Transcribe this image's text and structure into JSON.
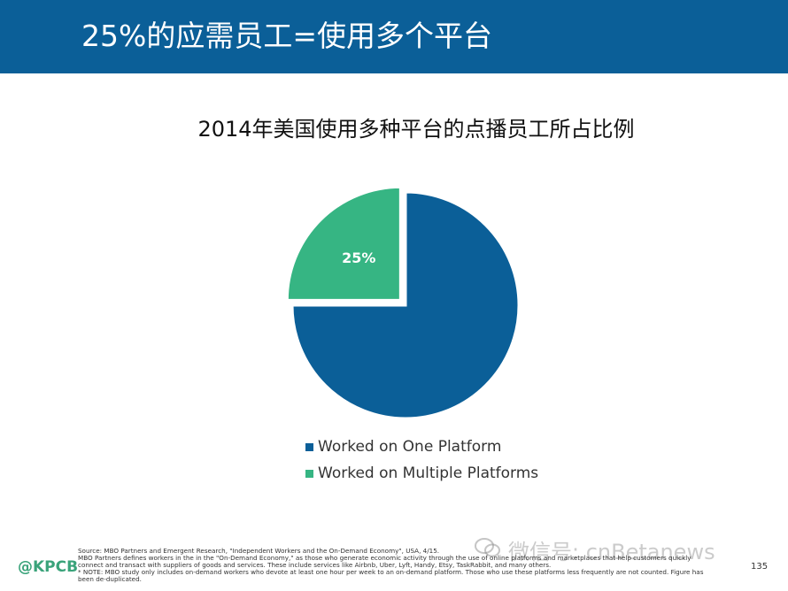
{
  "header": {
    "title": "25%的应需员工=使用多个平台"
  },
  "chart_data": {
    "type": "pie",
    "title": "2014年美国使用多种平台的点播员工所占比例",
    "labels": [
      "Worked on One Platform",
      "Worked on Multiple Platforms"
    ],
    "values": [
      75,
      25
    ],
    "colors": [
      "#0b5f98",
      "#36b583"
    ],
    "data_labels": [
      "",
      "25%"
    ],
    "legend_position": "bottom"
  },
  "footer": {
    "source_lines": [
      "Source:  MBO Partners and Emergent Research, \"Independent Workers and the On-Demand Economy\", USA, 4/15.",
      "MBO Partners defines workers in the in the \"On-Demand Economy,\" as those who generate economic activity through the use of online platforms and marketplaces that help customers quickly",
      "connect and transact with suppliers of goods and services. These include services like Airbnb, Uber, Lyft, Handy, Etsy, TaskRabbit, and many others.",
      "* NOTE: MBO study only includes on-demand workers who devote at least one hour per week to an on-demand platform. Those who use these platforms less frequently are not counted. Figure has",
      "been de-duplicated."
    ],
    "brand": "@KPCB",
    "page_number": "135"
  },
  "watermark": {
    "icon": "wechat-icon",
    "text": "微信号: cnBetanews"
  }
}
